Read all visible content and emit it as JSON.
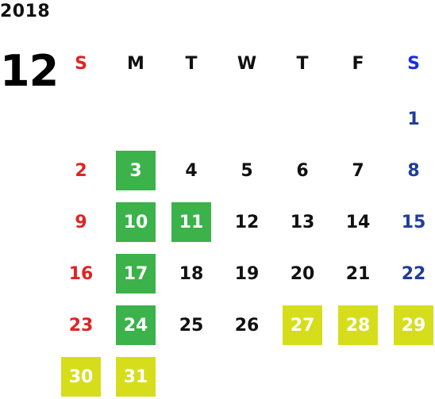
{
  "calendar": {
    "year": "2018",
    "month": "12",
    "weekdays": [
      {
        "label": "S",
        "color": "#e02424"
      },
      {
        "label": "M",
        "color": "#111111"
      },
      {
        "label": "T",
        "color": "#111111"
      },
      {
        "label": "W",
        "color": "#111111"
      },
      {
        "label": "T",
        "color": "#111111"
      },
      {
        "label": "F",
        "color": "#111111"
      },
      {
        "label": "S",
        "color": "#1a2ee0"
      }
    ],
    "days": [
      {
        "day": "1",
        "weekday": 6,
        "week": 0,
        "highlight": ""
      },
      {
        "day": "2",
        "weekday": 0,
        "week": 1,
        "highlight": ""
      },
      {
        "day": "3",
        "weekday": 1,
        "week": 1,
        "highlight": "green"
      },
      {
        "day": "4",
        "weekday": 2,
        "week": 1,
        "highlight": ""
      },
      {
        "day": "5",
        "weekday": 3,
        "week": 1,
        "highlight": ""
      },
      {
        "day": "6",
        "weekday": 4,
        "week": 1,
        "highlight": ""
      },
      {
        "day": "7",
        "weekday": 5,
        "week": 1,
        "highlight": ""
      },
      {
        "day": "8",
        "weekday": 6,
        "week": 1,
        "highlight": ""
      },
      {
        "day": "9",
        "weekday": 0,
        "week": 2,
        "highlight": ""
      },
      {
        "day": "10",
        "weekday": 1,
        "week": 2,
        "highlight": "green"
      },
      {
        "day": "11",
        "weekday": 2,
        "week": 2,
        "highlight": "green"
      },
      {
        "day": "12",
        "weekday": 3,
        "week": 2,
        "highlight": ""
      },
      {
        "day": "13",
        "weekday": 4,
        "week": 2,
        "highlight": ""
      },
      {
        "day": "14",
        "weekday": 5,
        "week": 2,
        "highlight": ""
      },
      {
        "day": "15",
        "weekday": 6,
        "week": 2,
        "highlight": ""
      },
      {
        "day": "16",
        "weekday": 0,
        "week": 3,
        "highlight": ""
      },
      {
        "day": "17",
        "weekday": 1,
        "week": 3,
        "highlight": "green"
      },
      {
        "day": "18",
        "weekday": 2,
        "week": 3,
        "highlight": ""
      },
      {
        "day": "19",
        "weekday": 3,
        "week": 3,
        "highlight": ""
      },
      {
        "day": "20",
        "weekday": 4,
        "week": 3,
        "highlight": ""
      },
      {
        "day": "21",
        "weekday": 5,
        "week": 3,
        "highlight": ""
      },
      {
        "day": "22",
        "weekday": 6,
        "week": 3,
        "highlight": ""
      },
      {
        "day": "23",
        "weekday": 0,
        "week": 4,
        "highlight": ""
      },
      {
        "day": "24",
        "weekday": 1,
        "week": 4,
        "highlight": "green"
      },
      {
        "day": "25",
        "weekday": 2,
        "week": 4,
        "highlight": ""
      },
      {
        "day": "26",
        "weekday": 3,
        "week": 4,
        "highlight": ""
      },
      {
        "day": "27",
        "weekday": 4,
        "week": 4,
        "highlight": "yellow"
      },
      {
        "day": "28",
        "weekday": 5,
        "week": 4,
        "highlight": "yellow"
      },
      {
        "day": "29",
        "weekday": 6,
        "week": 4,
        "highlight": "yellow"
      },
      {
        "day": "30",
        "weekday": 0,
        "week": 5,
        "highlight": "yellow"
      },
      {
        "day": "31",
        "weekday": 1,
        "week": 5,
        "highlight": "yellow"
      }
    ],
    "colors": {
      "sunday": "#e02424",
      "saturday": "#1f3d99",
      "green_highlight": "#3bb24a",
      "yellow_highlight": "#d6de1c"
    }
  }
}
